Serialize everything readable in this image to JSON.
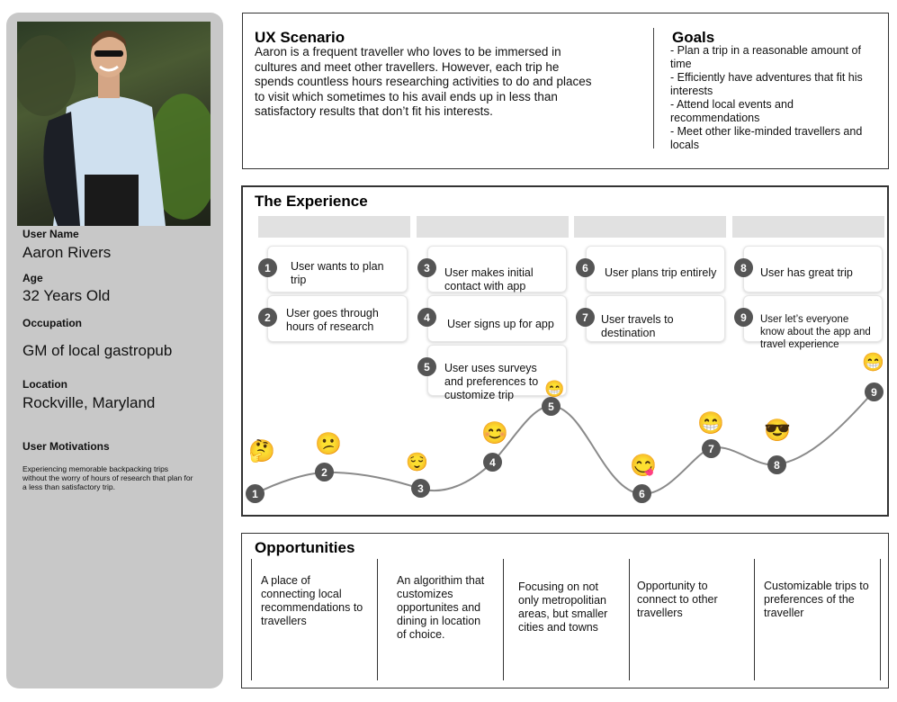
{
  "persona": {
    "user_name_label": "User Name",
    "user_name": "Aaron Rivers",
    "age_label": "Age",
    "age": "32 Years Old",
    "occupation_label": "Occupation",
    "occupation": "GM of local gastropub",
    "location_label": "Location",
    "location": "Rockville, Maryland",
    "motivations_label": "User Motivations",
    "motivations": "Experiencing memorable backpacking trips without the worry of hours of research that plan for a less than satisfactory trip."
  },
  "scenario": {
    "title": "UX Scenario",
    "text": "Aaron is a frequent traveller who loves to be immersed in cultures and meet other travellers. However, each trip he spends countless hours researching activities to do and places to visit which sometimes to his avail ends up in less than satisfactory results that don’t fit his interests."
  },
  "goals": {
    "title": "Goals",
    "items": [
      "- Plan a trip in a reasonable amount of time",
      "- Efficiently have adventures that fit his interests",
      "- Attend local events and recommendations",
      "- Meet other like-minded travellers and locals"
    ]
  },
  "experience": {
    "title": "The Experience",
    "steps": [
      {
        "num": "1",
        "text": "User wants to plan trip"
      },
      {
        "num": "2",
        "text": "User goes through hours of research"
      },
      {
        "num": "3",
        "text": "User makes initial contact with app"
      },
      {
        "num": "4",
        "text": "User signs up for app"
      },
      {
        "num": "5",
        "text": "User uses surveys and preferences to customize trip"
      },
      {
        "num": "6",
        "text": "User plans trip entirely"
      },
      {
        "num": "7",
        "text": "User travels to destination"
      },
      {
        "num": "8",
        "text": "User has great trip"
      },
      {
        "num": "9",
        "text": "User let’s everyone know about the app and travel experience"
      }
    ],
    "journey_points": [
      {
        "label": "1",
        "emoji": "🤔"
      },
      {
        "label": "2",
        "emoji": "😕"
      },
      {
        "label": "3",
        "emoji": "😌"
      },
      {
        "label": "4",
        "emoji": "😊"
      },
      {
        "label": "5",
        "emoji": "😁"
      },
      {
        "label": "6",
        "emoji": "😋"
      },
      {
        "label": "7",
        "emoji": "😁"
      },
      {
        "label": "8",
        "emoji": "😎"
      },
      {
        "label": "9",
        "emoji": "😁"
      }
    ]
  },
  "opportunities": {
    "title": "Opportunities",
    "items": [
      "A place of connecting local recommendations to travellers",
      "An algorithim that customizes opportunites and dining in location of choice.",
      "Focusing on not only metropolitian areas, but smaller cities and towns",
      "Opportunity to connect to other travellers",
      "Customizable trips to preferences of the traveller"
    ]
  },
  "colors": {
    "panel": "#c8c8c8",
    "badge": "#555555",
    "column_header": "#e1e1e1"
  }
}
